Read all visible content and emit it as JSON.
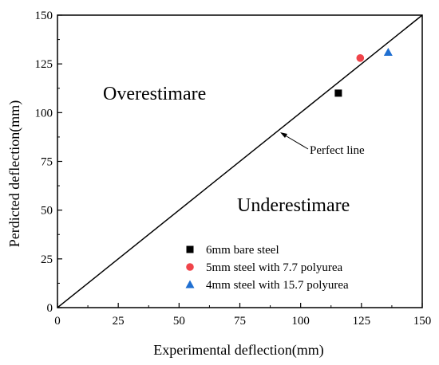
{
  "chart_data": {
    "type": "scatter",
    "xlabel": "Experimental deflection(mm)",
    "ylabel": "Perdicted deflection(mm)",
    "xlim": [
      0,
      150
    ],
    "ylim": [
      0,
      150
    ],
    "xticks": [
      "0",
      "25",
      "50",
      "75",
      "100",
      "125",
      "150"
    ],
    "yticks": [
      "0",
      "25",
      "50",
      "75",
      "100",
      "125",
      "150"
    ],
    "grid": false,
    "legend_position": "bottom-right",
    "series": [
      {
        "name": "6mm bare steel",
        "marker": "square",
        "color": "#000000",
        "x": [
          115.5
        ],
        "y": [
          110
        ]
      },
      {
        "name": "5mm steel with 7.7 polyurea",
        "marker": "circle",
        "color": "#f0444a",
        "x": [
          124.5
        ],
        "y": [
          128
        ]
      },
      {
        "name": "4mm steel with 15.7 polyurea",
        "marker": "triangle",
        "color": "#1f6fd1",
        "x": [
          136
        ],
        "y": [
          131
        ]
      }
    ],
    "reference_line": {
      "x": [
        0,
        150
      ],
      "y": [
        0,
        150
      ],
      "color": "#000000"
    },
    "annotations": {
      "perfect_line": "Perfect line",
      "overestimate": "Overestimare",
      "underestimate": "Underestimare"
    }
  }
}
